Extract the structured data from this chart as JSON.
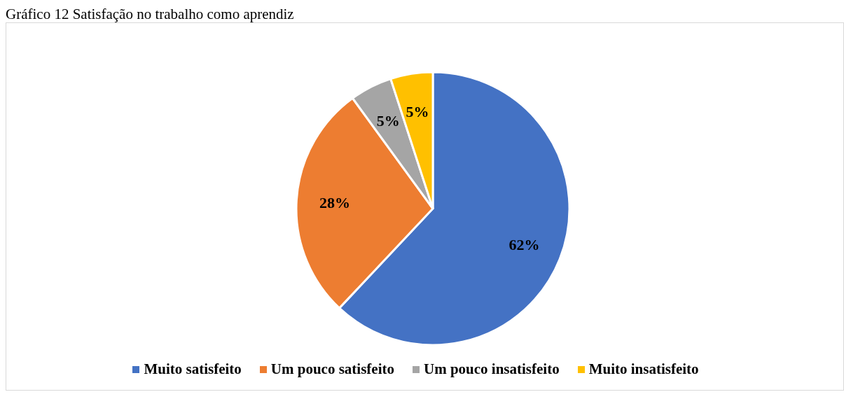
{
  "chart_data": {
    "type": "pie",
    "title": "Gráfico 12 Satisfação no trabalho como aprendiz",
    "categories": [
      "Muito satisfeito",
      "Um pouco satisfeito",
      "Um pouco insatisfeito",
      "Muito insatisfeito"
    ],
    "values": [
      62,
      28,
      5,
      5
    ],
    "colors": [
      "#4472c4",
      "#ed7d31",
      "#a5a5a5",
      "#ffc000"
    ],
    "value_labels": [
      "62%",
      "28%",
      "5%",
      "5%"
    ],
    "legend": "bottom"
  }
}
